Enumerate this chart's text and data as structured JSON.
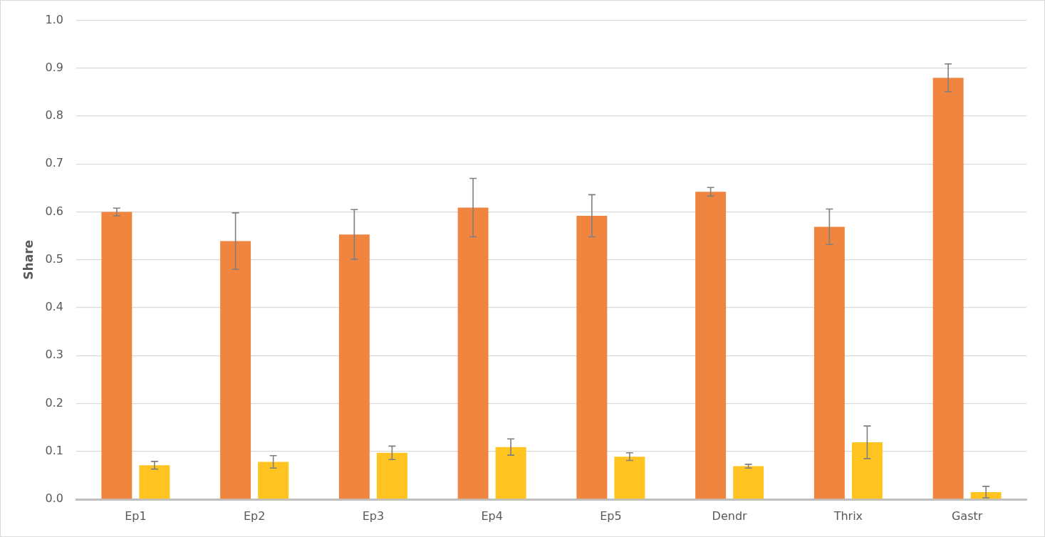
{
  "chart_data": {
    "type": "bar",
    "ylabel": "Share",
    "categories": [
      "Ep1",
      "Ep2",
      "Ep3",
      "Ep4",
      "Ep5",
      "Dendr",
      "Thrix",
      "Gastr"
    ],
    "series": [
      {
        "color": "#f0853f",
        "values": [
          0.6,
          0.539,
          0.553,
          0.609,
          0.592,
          0.642,
          0.569,
          0.88
        ],
        "errors": [
          0.008,
          0.059,
          0.052,
          0.061,
          0.044,
          0.009,
          0.037,
          0.029
        ]
      },
      {
        "color": "#ffc41f",
        "values": [
          0.071,
          0.078,
          0.097,
          0.109,
          0.089,
          0.069,
          0.119,
          0.015
        ],
        "errors": [
          0.008,
          0.013,
          0.014,
          0.017,
          0.008,
          0.004,
          0.034,
          0.012
        ]
      }
    ],
    "ylim": [
      0,
      1
    ],
    "yticks": [
      {
        "value": 0,
        "label": "0.0"
      },
      0.1,
      0.2,
      0.3,
      0.4,
      0.5,
      0.6,
      0.7,
      0.8,
      0.9,
      {
        "value": 1,
        "label": "1.0"
      }
    ],
    "grid": "y"
  }
}
